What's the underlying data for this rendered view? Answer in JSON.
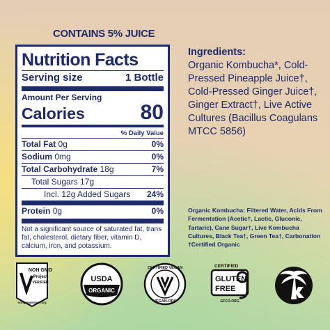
{
  "header": {
    "juice_note": "CONTAINS 5% JUICE"
  },
  "nutrition_facts": {
    "title": "Nutrition Facts",
    "serving_size_label": "Serving size",
    "serving_size_value": "1 Bottle",
    "amount_per_serving": "Amount Per Serving",
    "calories_label": "Calories",
    "calories_value": 80,
    "daily_value_header": "% Daily Value",
    "rows": [
      {
        "label": "Total Fat",
        "amount": "0g",
        "dv": "0%"
      },
      {
        "label": "Sodium",
        "amount": "0mg",
        "dv": "0%"
      },
      {
        "label": "Total Carbohydrate",
        "amount": "18g",
        "dv": "7%"
      },
      {
        "label": "Total Sugars 17g"
      },
      {
        "label": "Incl. 12g Added Sugars",
        "dv": "24%"
      },
      {
        "label": "Protein",
        "amount": "0g",
        "dv": "0%"
      }
    ],
    "footnote": "Not a significant source of saturated fat, trans fat, cholesterol, dietary fiber, vitamin D, calcium, iron, and potassium."
  },
  "ingredients": {
    "title": "Ingredients:",
    "text": "Organic Kombucha*, Cold-Pressed Pineapple Juice†, Cold-Pressed Ginger Juice†, Ginger Extract†, Live Active Cultures (Bacillus Coagulans MTCC 5856)"
  },
  "kombucha_note": {
    "text": "Organic Kombucha: Filtered Water, Acids From Fermentation (Acetic†, Lactic, Gluconic, Tartaric), Cane Sugar†, Live Kombucha Cultures, Black Tea†, Green Tea†, Carbonation",
    "footnote": "†Certified Organic"
  },
  "certifications": {
    "non_gmo": {
      "top": "NON GMO",
      "middle": "Project",
      "bottom": "VERIFIED",
      "url": "nongmoproject.org"
    },
    "usda": {
      "top": "USDA",
      "bottom": "ORGANIC"
    },
    "vegan": {
      "top": "CERTIFIED VEGAN",
      "bottom": "VEGAN.ORG"
    },
    "gluten_free": {
      "top": "CERTIFIED",
      "line1": "GLUTEN",
      "line2": "FREE",
      "url": "GFCO.ORG"
    }
  }
}
